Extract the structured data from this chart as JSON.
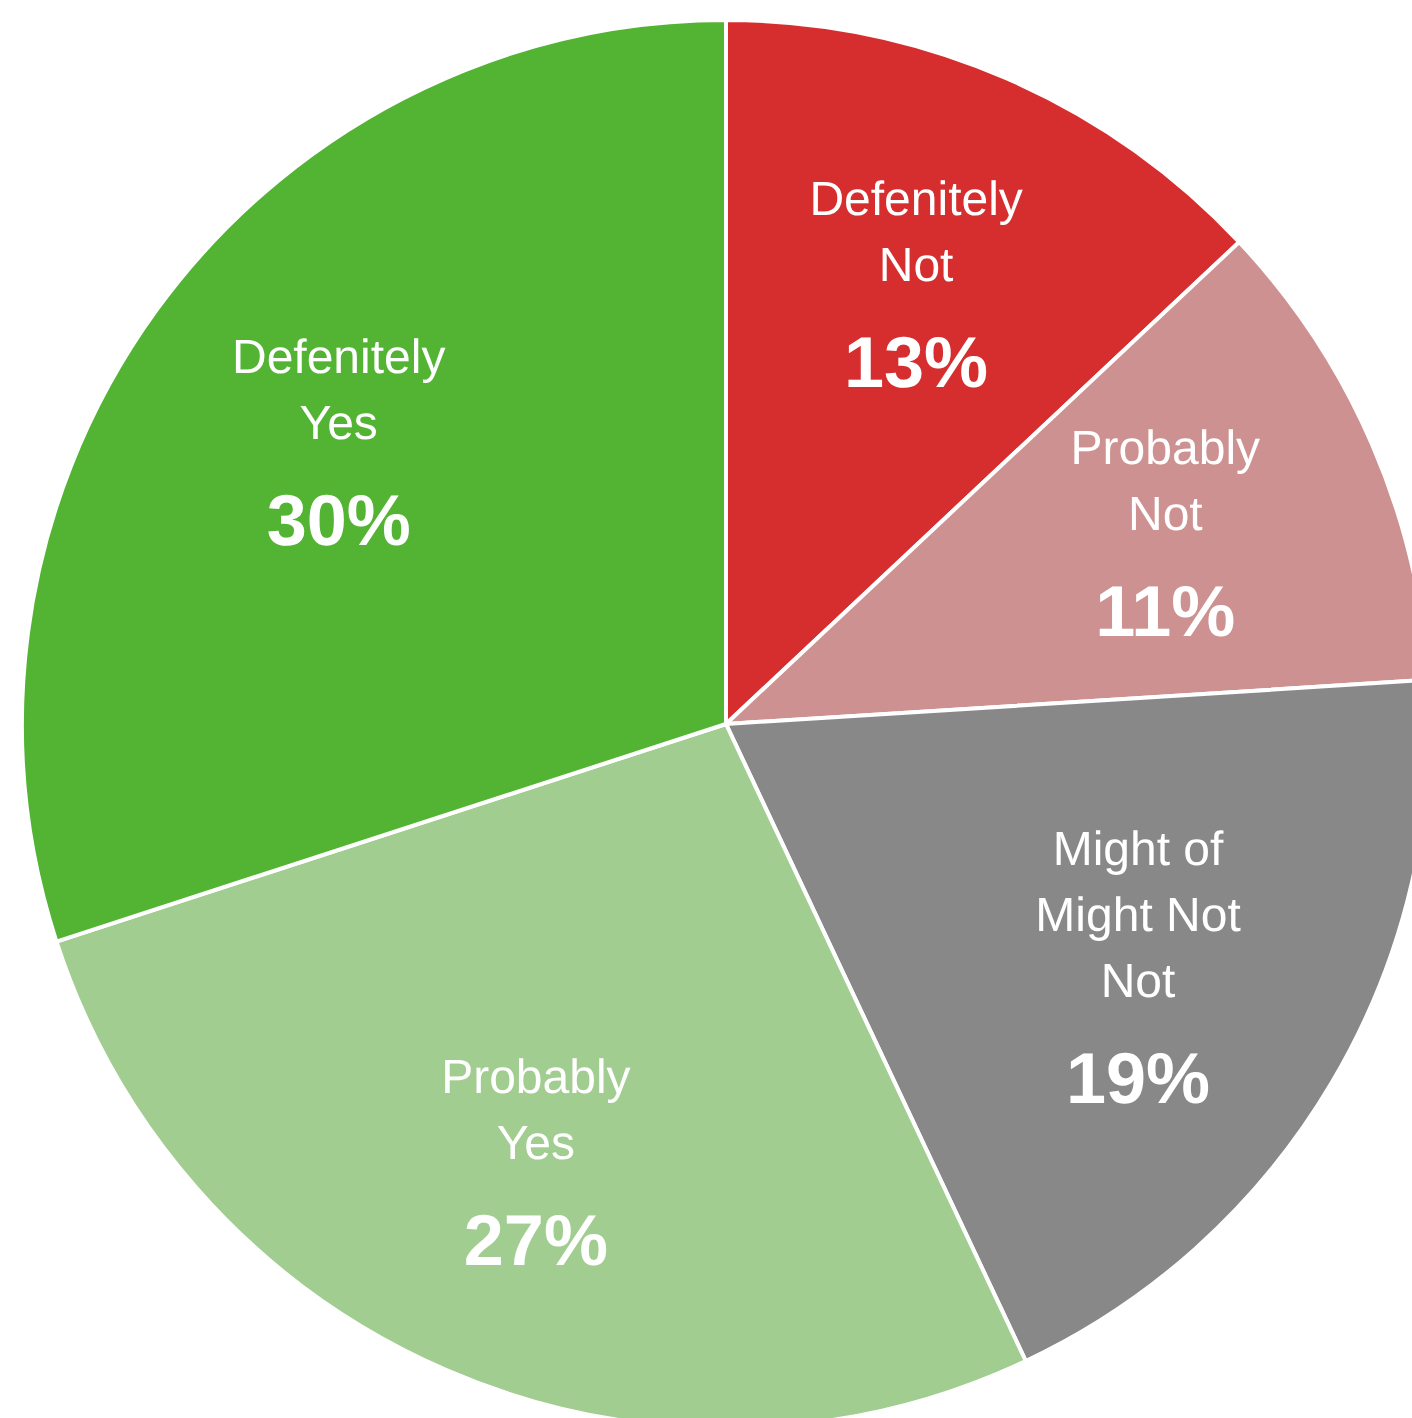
{
  "chart_data": {
    "type": "pie",
    "categories": [
      "Defenitely\nNot",
      "Probably\nNot",
      "Might of\nMight Not\nNot",
      "Probably\nYes",
      "Defenitely\nYes"
    ],
    "values": [
      13,
      11,
      19,
      27,
      30
    ],
    "value_labels": [
      "13%",
      "11%",
      "19%",
      "27%",
      "30%"
    ],
    "colors": [
      "#d62e2e",
      "#cc9190",
      "#888888",
      "#a2cd91",
      "#52b432"
    ]
  }
}
